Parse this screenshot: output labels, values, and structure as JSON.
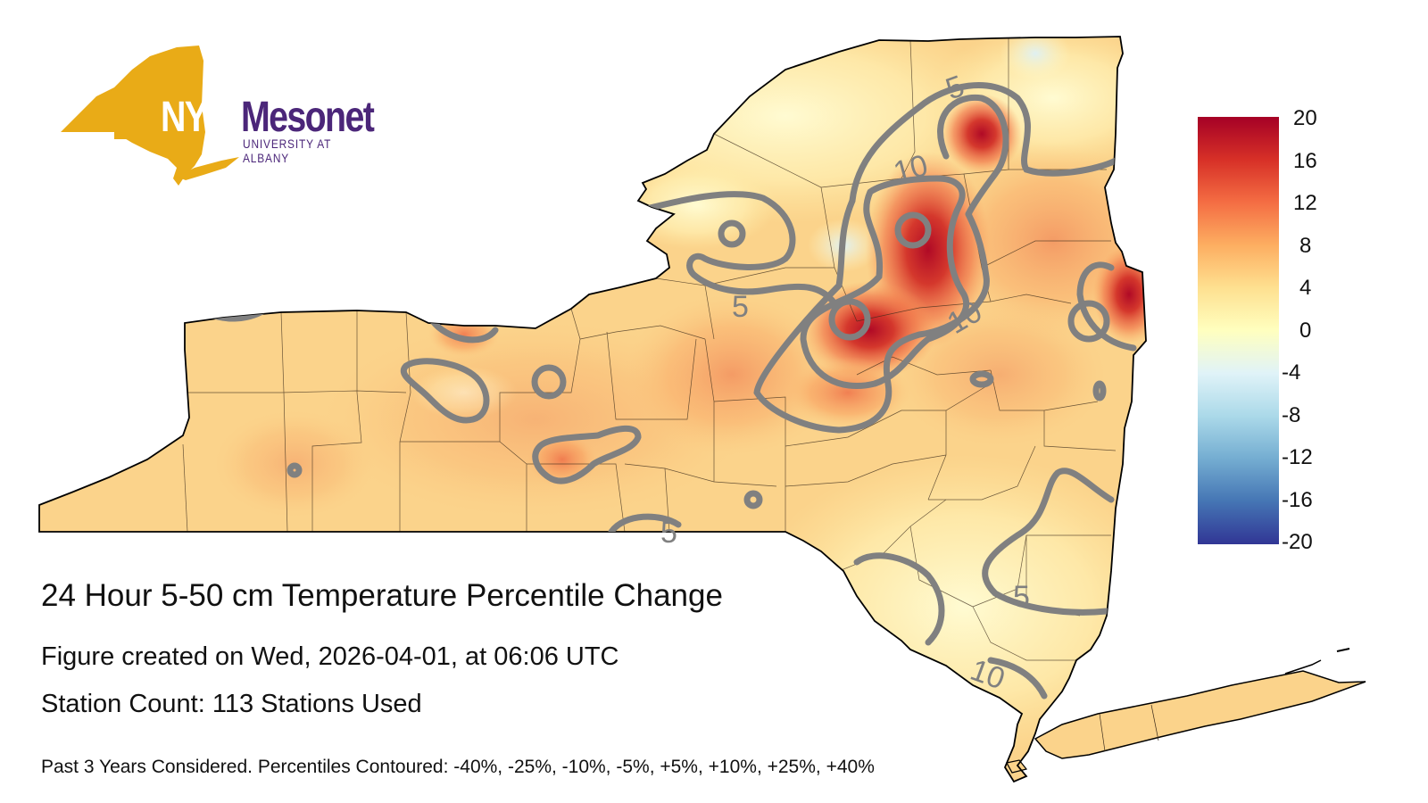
{
  "logo": {
    "nys": "NYS",
    "mesonet": "Mesonet",
    "university": "UNIVERSITY AT ALBANY",
    "brand_gold": "#e9ab17",
    "brand_purple": "#4b2679"
  },
  "title": "24 Hour 5-50 cm Temperature Percentile Change",
  "created": "Figure created on Wed, 2026-04-01, at 06:06 UTC",
  "stations": "Station Count: 113 Stations Used",
  "footnote": "Past 3 Years Considered. Percentiles Contoured: -40%, -25%, -10%, -5%, +5%, +10%, +25%, +40%",
  "colorbar": {
    "labels": [
      "20",
      "16",
      "12",
      "8",
      "4",
      "0",
      "-4",
      "-8",
      "-12",
      "-16",
      "-20"
    ],
    "colors": [
      "#a50026",
      "#d73027",
      "#f46d43",
      "#fdae61",
      "#fee090",
      "#ffffbf",
      "#e0f3f8",
      "#abd9e9",
      "#74add1",
      "#4575b4",
      "#313695"
    ]
  },
  "contour_labels": [
    "5",
    "10",
    "10",
    "5",
    "5",
    "5",
    "10"
  ],
  "colors": {
    "contour": "#808080",
    "land_base": "#fbd38b",
    "border": "#000000"
  }
}
